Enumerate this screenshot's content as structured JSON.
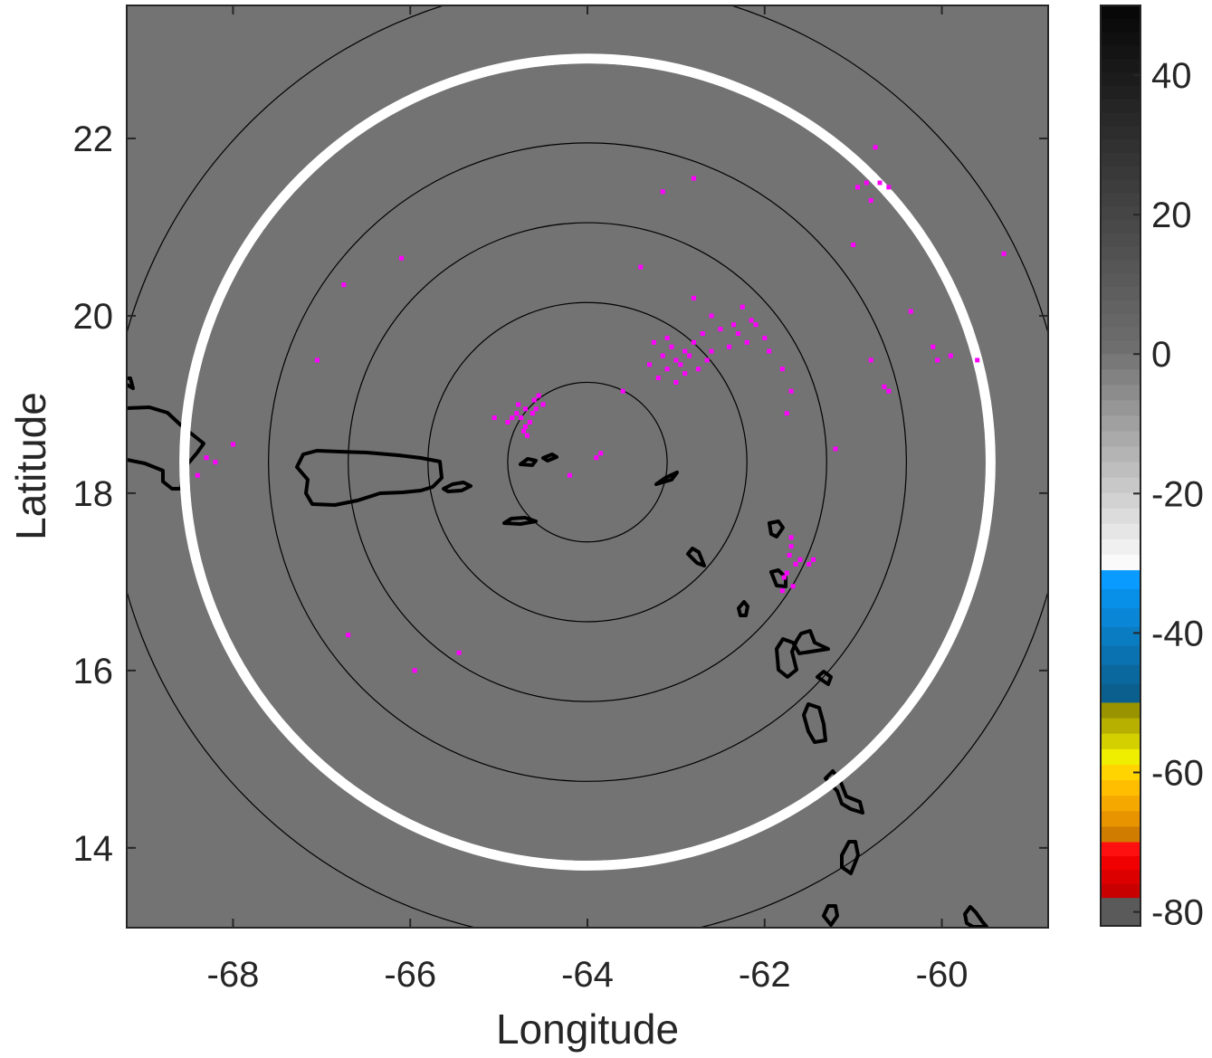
{
  "chart_data": {
    "type": "scatter",
    "title": "",
    "xlabel": "Longitude",
    "ylabel": "Latitude",
    "xlim": [
      -69.2,
      -58.8
    ],
    "ylim": [
      13.1,
      23.5
    ],
    "xticks": [
      -68,
      -66,
      -64,
      -62,
      -60
    ],
    "yticks": [
      14,
      16,
      18,
      20,
      22
    ],
    "grid": false,
    "background_color": "#737373",
    "radar_center": {
      "lon": -64.0,
      "lat": 18.35
    },
    "range_ring_radii_deg": [
      0.9,
      1.8,
      2.7,
      3.6,
      4.5,
      5.4
    ],
    "highlight_ring_radius_deg": 4.55,
    "highlight_ring_color": "#ffffff",
    "series": [
      {
        "marker_color": "#ff00ff",
        "points": [
          {
            "x": -64.75,
            "y": 18.85
          },
          {
            "x": -64.7,
            "y": 18.95
          },
          {
            "x": -64.65,
            "y": 18.8
          },
          {
            "x": -64.8,
            "y": 18.9
          },
          {
            "x": -64.6,
            "y": 19.05
          },
          {
            "x": -64.55,
            "y": 19.1
          },
          {
            "x": -64.72,
            "y": 18.7
          },
          {
            "x": -64.68,
            "y": 18.65
          },
          {
            "x": -64.85,
            "y": 18.85
          },
          {
            "x": -64.5,
            "y": 19.0
          },
          {
            "x": -64.62,
            "y": 18.9
          },
          {
            "x": -64.78,
            "y": 19.0
          },
          {
            "x": -64.9,
            "y": 18.8
          },
          {
            "x": -64.7,
            "y": 18.75
          },
          {
            "x": -64.58,
            "y": 18.95
          },
          {
            "x": -63.0,
            "y": 19.5
          },
          {
            "x": -62.9,
            "y": 19.6
          },
          {
            "x": -63.1,
            "y": 19.4
          },
          {
            "x": -62.8,
            "y": 19.7
          },
          {
            "x": -63.2,
            "y": 19.3
          },
          {
            "x": -62.95,
            "y": 19.45
          },
          {
            "x": -63.05,
            "y": 19.65
          },
          {
            "x": -62.85,
            "y": 19.55
          },
          {
            "x": -63.15,
            "y": 19.55
          },
          {
            "x": -62.75,
            "y": 19.4
          },
          {
            "x": -63.25,
            "y": 19.7
          },
          {
            "x": -62.7,
            "y": 19.8
          },
          {
            "x": -63.3,
            "y": 19.45
          },
          {
            "x": -62.6,
            "y": 19.6
          },
          {
            "x": -63.0,
            "y": 19.25
          },
          {
            "x": -62.9,
            "y": 19.35
          },
          {
            "x": -63.1,
            "y": 19.75
          },
          {
            "x": -62.65,
            "y": 19.5
          },
          {
            "x": -62.5,
            "y": 19.85
          },
          {
            "x": -62.3,
            "y": 19.8
          },
          {
            "x": -62.2,
            "y": 19.7
          },
          {
            "x": -62.1,
            "y": 19.9
          },
          {
            "x": -62.0,
            "y": 19.75
          },
          {
            "x": -62.4,
            "y": 19.65
          },
          {
            "x": -62.25,
            "y": 20.1
          },
          {
            "x": -62.15,
            "y": 19.95
          },
          {
            "x": -62.35,
            "y": 19.9
          },
          {
            "x": -61.95,
            "y": 19.6
          },
          {
            "x": -62.6,
            "y": 20.0
          },
          {
            "x": -62.8,
            "y": 20.2
          },
          {
            "x": -61.8,
            "y": 19.4
          },
          {
            "x": -61.7,
            "y": 19.15
          },
          {
            "x": -61.75,
            "y": 18.9
          },
          {
            "x": -61.7,
            "y": 17.5
          },
          {
            "x": -61.72,
            "y": 17.3
          },
          {
            "x": -61.75,
            "y": 17.1
          },
          {
            "x": -61.68,
            "y": 16.95
          },
          {
            "x": -61.8,
            "y": 16.9
          },
          {
            "x": -61.65,
            "y": 17.2
          },
          {
            "x": -61.6,
            "y": 17.25
          },
          {
            "x": -61.5,
            "y": 17.2
          },
          {
            "x": -61.45,
            "y": 17.25
          },
          {
            "x": -61.78,
            "y": 17.05
          },
          {
            "x": -61.7,
            "y": 17.4
          },
          {
            "x": -60.75,
            "y": 21.9
          },
          {
            "x": -60.95,
            "y": 21.45
          },
          {
            "x": -60.85,
            "y": 21.5
          },
          {
            "x": -60.7,
            "y": 21.5
          },
          {
            "x": -60.6,
            "y": 21.45
          },
          {
            "x": -60.8,
            "y": 21.3
          },
          {
            "x": -61.0,
            "y": 20.8
          },
          {
            "x": -60.35,
            "y": 20.05
          },
          {
            "x": -60.1,
            "y": 19.65
          },
          {
            "x": -60.05,
            "y": 19.5
          },
          {
            "x": -59.9,
            "y": 19.55
          },
          {
            "x": -59.6,
            "y": 19.5
          },
          {
            "x": -59.3,
            "y": 20.7
          },
          {
            "x": -60.65,
            "y": 19.2
          },
          {
            "x": -60.6,
            "y": 19.15
          },
          {
            "x": -61.2,
            "y": 18.5
          },
          {
            "x": -60.8,
            "y": 19.5
          },
          {
            "x": -63.15,
            "y": 21.4
          },
          {
            "x": -62.8,
            "y": 21.55
          },
          {
            "x": -63.4,
            "y": 20.55
          },
          {
            "x": -63.6,
            "y": 19.15
          },
          {
            "x": -63.85,
            "y": 18.45
          },
          {
            "x": -63.9,
            "y": 18.4
          },
          {
            "x": -64.2,
            "y": 18.2
          },
          {
            "x": -65.05,
            "y": 18.85
          },
          {
            "x": -66.1,
            "y": 20.65
          },
          {
            "x": -66.75,
            "y": 20.35
          },
          {
            "x": -67.05,
            "y": 19.5
          },
          {
            "x": -68.0,
            "y": 18.55
          },
          {
            "x": -68.2,
            "y": 18.35
          },
          {
            "x": -68.3,
            "y": 18.4
          },
          {
            "x": -68.4,
            "y": 18.2
          },
          {
            "x": -66.7,
            "y": 16.4
          },
          {
            "x": -65.95,
            "y": 16.0
          },
          {
            "x": -65.45,
            "y": 16.2
          }
        ]
      }
    ],
    "colorbar": {
      "ticks": [
        40,
        20,
        0,
        -20,
        -40,
        -60,
        -80
      ],
      "limits": [
        -82,
        50
      ]
    }
  }
}
